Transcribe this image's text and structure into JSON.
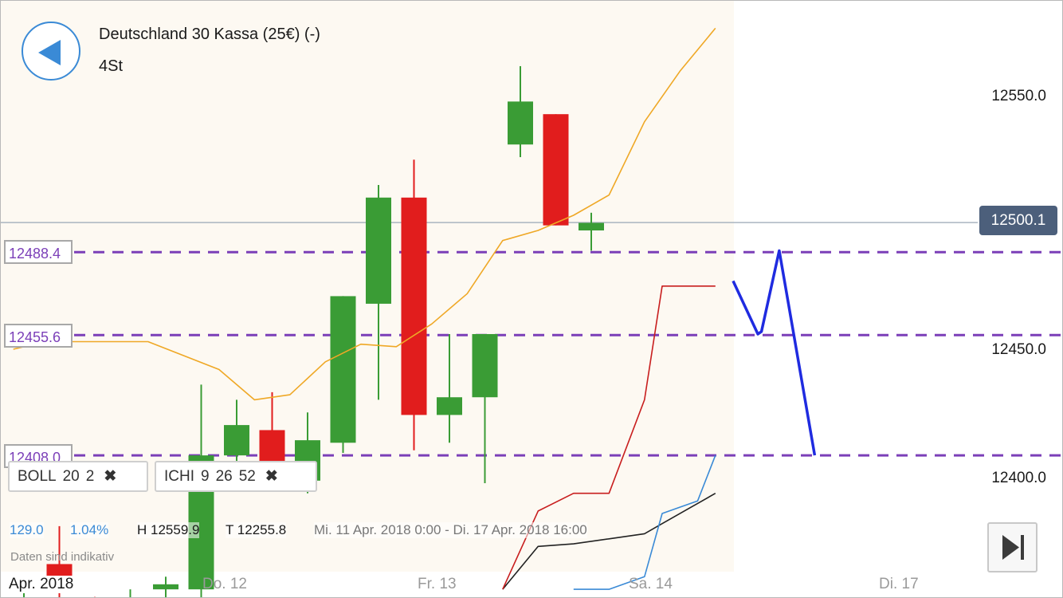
{
  "header": {
    "title": "Deutschland 30 Kassa (25€) (-)",
    "timeframe": "4St"
  },
  "price_axis": {
    "labels": [
      "12550.0",
      "12450.0",
      "12400.0"
    ],
    "current_price": "12500.1"
  },
  "levels": [
    "12488.4",
    "12455.6",
    "12408.0"
  ],
  "indicators": [
    {
      "name": "BOLL",
      "params": [
        "20",
        "2"
      ],
      "remove": "✖"
    },
    {
      "name": "ICHI",
      "params": [
        "9",
        "26",
        "52"
      ],
      "remove": "✖"
    }
  ],
  "stats": {
    "change": "129.0",
    "change_pct": "1.04%",
    "high": "H 12559.9",
    "low": "T 12255.8",
    "range": "Mi. 11 Apr. 2018 0:00 - Di. 17 Apr. 2018 16:00"
  },
  "disclaimer": "Daten sind indikativ",
  "x_axis": {
    "labels": [
      "Apr. 2018",
      "Do. 12",
      "Fr. 13",
      "Sa. 14",
      "Di. 17"
    ]
  },
  "colors": {
    "up": "#3a9c35",
    "down": "#e11d1d",
    "accent": "#3a8ad6",
    "level": "#7b3fb8",
    "drawing": "#1f2be0"
  },
  "chart_data": {
    "type": "candlestick",
    "title": "Deutschland 30 Kassa (25€) (-)",
    "timeframe": "4St",
    "y_visible_range": [
      12355,
      12580
    ],
    "last_price": 12500.1,
    "horizontal_levels": [
      12488.4,
      12455.6,
      12408.0
    ],
    "candles": [
      {
        "dir": "up",
        "open": 12345,
        "close": 12350,
        "high": 12355,
        "low": 12340
      },
      {
        "dir": "down",
        "open": 12365,
        "close": 12355,
        "high": 12380,
        "low": 12350
      },
      {
        "dir": "down",
        "open": 12345,
        "close": 12340,
        "high": 12352,
        "low": 12335
      },
      {
        "dir": "up",
        "open": 12345,
        "close": 12350,
        "high": 12355,
        "low": 12340
      },
      {
        "dir": "up",
        "open": 12355,
        "close": 12357,
        "high": 12360,
        "low": 12350
      },
      {
        "dir": "up",
        "open": 12355,
        "close": 12408,
        "high": 12436,
        "low": 12345
      },
      {
        "dir": "up",
        "open": 12408,
        "close": 12420,
        "high": 12430,
        "low": 12396
      },
      {
        "dir": "down",
        "open": 12418,
        "close": 12397,
        "high": 12433,
        "low": 12394
      },
      {
        "dir": "up",
        "open": 12398,
        "close": 12414,
        "high": 12425,
        "low": 12393
      },
      {
        "dir": "up",
        "open": 12413,
        "close": 12471,
        "high": 12471,
        "low": 12409
      },
      {
        "dir": "up",
        "open": 12468,
        "close": 12510,
        "high": 12515,
        "low": 12430
      },
      {
        "dir": "down",
        "open": 12510,
        "close": 12424,
        "high": 12525,
        "low": 12410
      },
      {
        "dir": "up",
        "open": 12424,
        "close": 12431,
        "high": 12456,
        "low": 12413
      },
      {
        "dir": "up",
        "open": 12431,
        "close": 12456,
        "high": 12456,
        "low": 12397
      },
      {
        "dir": "up",
        "open": 12531,
        "close": 12548,
        "high": 12562,
        "low": 12526
      },
      {
        "dir": "down",
        "open": 12543,
        "close": 12499,
        "high": 12543,
        "low": 12499
      },
      {
        "dir": "up",
        "open": 12497,
        "close": 12500,
        "high": 12504,
        "low": 12489
      }
    ],
    "bollinger_upper": [
      {
        "i": -0.3,
        "v": 12450
      },
      {
        "i": 0,
        "v": 12451
      },
      {
        "i": 1.3,
        "v": 12453
      },
      {
        "i": 3.5,
        "v": 12453
      },
      {
        "i": 5.5,
        "v": 12442
      },
      {
        "i": 6.5,
        "v": 12430
      },
      {
        "i": 7.5,
        "v": 12432
      },
      {
        "i": 8.5,
        "v": 12445
      },
      {
        "i": 9.5,
        "v": 12452
      },
      {
        "i": 10.5,
        "v": 12451
      },
      {
        "i": 11.5,
        "v": 12460
      },
      {
        "i": 12.5,
        "v": 12472
      },
      {
        "i": 13.5,
        "v": 12493
      },
      {
        "i": 14.5,
        "v": 12497
      },
      {
        "i": 15.5,
        "v": 12503
      },
      {
        "i": 16.5,
        "v": 12511
      },
      {
        "i": 17.5,
        "v": 12540
      },
      {
        "i": 18.5,
        "v": 12560
      },
      {
        "i": 19.5,
        "v": 12577
      }
    ],
    "ichimoku_red": [
      {
        "i": 13.5,
        "v": 12355
      },
      {
        "i": 14.5,
        "v": 12386
      },
      {
        "i": 15.5,
        "v": 12393
      },
      {
        "i": 16.5,
        "v": 12393
      },
      {
        "i": 17.5,
        "v": 12430
      },
      {
        "i": 18,
        "v": 12475
      },
      {
        "i": 19.5,
        "v": 12475
      }
    ],
    "ichimoku_black": [
      {
        "i": 13.5,
        "v": 12355
      },
      {
        "i": 14.5,
        "v": 12372
      },
      {
        "i": 15.5,
        "v": 12373
      },
      {
        "i": 16.5,
        "v": 12375
      },
      {
        "i": 17.5,
        "v": 12377
      },
      {
        "i": 18,
        "v": 12381
      },
      {
        "i": 19,
        "v": 12389
      },
      {
        "i": 19.5,
        "v": 12393
      }
    ],
    "ichimoku_blue": [
      {
        "i": 15.5,
        "v": 12355
      },
      {
        "i": 16.5,
        "v": 12355
      },
      {
        "i": 17.5,
        "v": 12360
      },
      {
        "i": 18,
        "v": 12385
      },
      {
        "i": 19,
        "v": 12390
      },
      {
        "i": 19.5,
        "v": 12408
      }
    ],
    "drawing": [
      {
        "i": 20,
        "v": 12477
      },
      {
        "i": 20.7,
        "v": 12456
      },
      {
        "i": 20.8,
        "v": 12457
      },
      {
        "i": 21.3,
        "v": 12489
      },
      {
        "i": 22.3,
        "v": 12408
      }
    ]
  }
}
